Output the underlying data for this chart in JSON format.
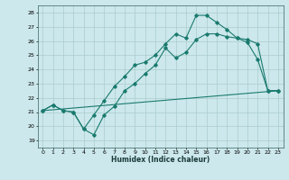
{
  "xlabel": "Humidex (Indice chaleur)",
  "bg_color": "#cce8ec",
  "grid_color": "#aacccc",
  "line_color": "#1a7a6e",
  "xlim": [
    -0.5,
    23.5
  ],
  "ylim": [
    18.5,
    28.5
  ],
  "xticks": [
    0,
    1,
    2,
    3,
    4,
    5,
    6,
    7,
    8,
    9,
    10,
    11,
    12,
    13,
    14,
    15,
    16,
    17,
    18,
    19,
    20,
    21,
    22,
    23
  ],
  "yticks": [
    19,
    20,
    21,
    22,
    23,
    24,
    25,
    26,
    27,
    28
  ],
  "line1_x": [
    0,
    1,
    2,
    3,
    4,
    5,
    6,
    7,
    8,
    9,
    10,
    11,
    12,
    13,
    14,
    15,
    16,
    17,
    18,
    19,
    20,
    21,
    22,
    23
  ],
  "line1_y": [
    21.1,
    21.5,
    21.1,
    21.0,
    19.8,
    19.4,
    20.8,
    21.4,
    22.5,
    23.0,
    23.7,
    24.3,
    25.5,
    24.8,
    25.2,
    26.1,
    26.5,
    26.5,
    26.3,
    26.2,
    25.9,
    24.7,
    22.5,
    22.5
  ],
  "line2_x": [
    0,
    1,
    2,
    3,
    4,
    5,
    6,
    7,
    8,
    9,
    10,
    11,
    12,
    13,
    14,
    15,
    16,
    17,
    18,
    19,
    20,
    21,
    22,
    23
  ],
  "line2_y": [
    21.1,
    21.5,
    21.1,
    21.0,
    19.8,
    20.8,
    21.8,
    22.8,
    23.5,
    24.3,
    24.5,
    25.0,
    25.8,
    26.5,
    26.2,
    27.8,
    27.8,
    27.3,
    26.8,
    26.2,
    26.1,
    25.8,
    22.5,
    22.5
  ],
  "line3_x": [
    0,
    23
  ],
  "line3_y": [
    21.1,
    22.5
  ]
}
